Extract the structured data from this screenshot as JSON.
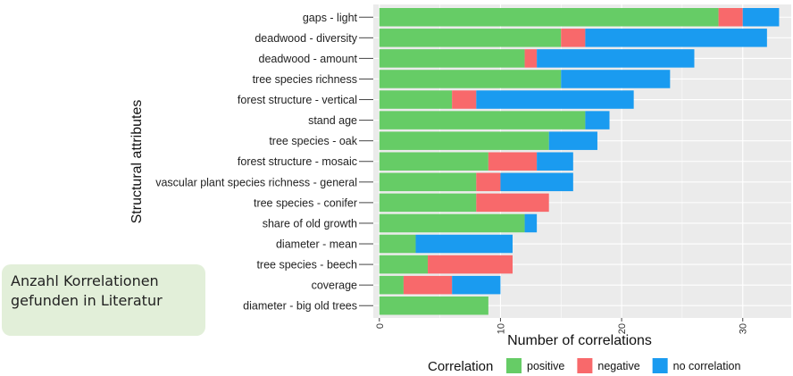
{
  "note": {
    "line1": "Anzahl Korrelationen",
    "line2": "gefunden in Literatur"
  },
  "colors": {
    "positive": "#66cc66",
    "negative": "#f8696b",
    "no_correlation": "#1a9bf0",
    "panel": "#ebebeb",
    "grid_major": "#ffffff"
  },
  "chart_data": {
    "type": "bar",
    "orientation": "horizontal",
    "stacked": true,
    "xlabel": "Number of correlations",
    "ylabel": "Structural attributes",
    "xlim": [
      -0.5,
      34
    ],
    "xticks": [
      0,
      10,
      20,
      30
    ],
    "grid": true,
    "legend": {
      "title": "Correlation",
      "position": "bottom",
      "entries": [
        "positive",
        "negative",
        "no correlation"
      ]
    },
    "categories": [
      "gaps - light",
      "deadwood - diversity",
      "deadwood - amount",
      "tree species richness",
      "forest structure - vertical",
      "stand age",
      "tree species - oak",
      "forest structure - mosaic",
      "vascular plant species richness - general",
      "tree species - conifer",
      "share of old growth",
      "diameter - mean",
      "tree species - beech",
      "coverage",
      "diameter - big old trees"
    ],
    "series": [
      {
        "name": "positive",
        "values": [
          28,
          15,
          12,
          15,
          6,
          17,
          14,
          9,
          8,
          8,
          12,
          3,
          4,
          2,
          9
        ]
      },
      {
        "name": "negative",
        "values": [
          2,
          2,
          1,
          0,
          2,
          0,
          0,
          4,
          2,
          6,
          0,
          0,
          7,
          4,
          0
        ]
      },
      {
        "name": "no correlation",
        "values": [
          3,
          15,
          13,
          9,
          13,
          2,
          4,
          3,
          6,
          0,
          1,
          8,
          0,
          4,
          0
        ]
      }
    ]
  }
}
